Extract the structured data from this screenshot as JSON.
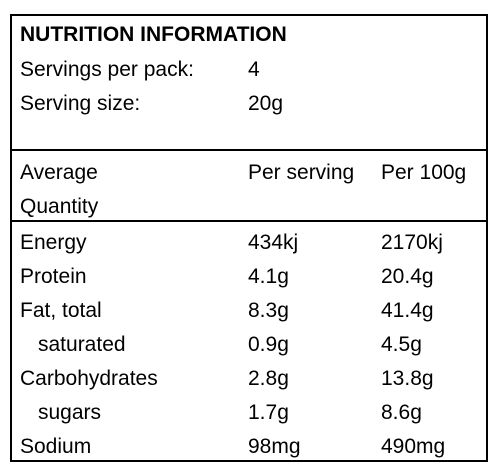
{
  "title": "NUTRITION INFORMATION",
  "servings_per_pack": {
    "label": "Servings per pack:",
    "value": "4"
  },
  "serving_size": {
    "label": "Serving size:",
    "value": "20g"
  },
  "header": {
    "average_line1": "Average",
    "average_line2": "Quantity",
    "per_serving": "Per serving",
    "per_100g": "Per 100g"
  },
  "rows": [
    {
      "name": "Energy",
      "per_serving": "434kj",
      "per_100g": "2170kj"
    },
    {
      "name": "Protein",
      "per_serving": "4.1g",
      "per_100g": "20.4g"
    },
    {
      "name": "Fat, total",
      "per_serving": "8.3g",
      "per_100g": "41.4g"
    },
    {
      "name": "saturated",
      "per_serving": "0.9g",
      "per_100g": "4.5g"
    },
    {
      "name": "Carbohydrates",
      "per_serving": "2.8g",
      "per_100g": "13.8g"
    },
    {
      "name": "sugars",
      "per_serving": "1.7g",
      "per_100g": "8.6g"
    },
    {
      "name": "Sodium",
      "per_serving": "98mg",
      "per_100g": "490mg"
    }
  ]
}
